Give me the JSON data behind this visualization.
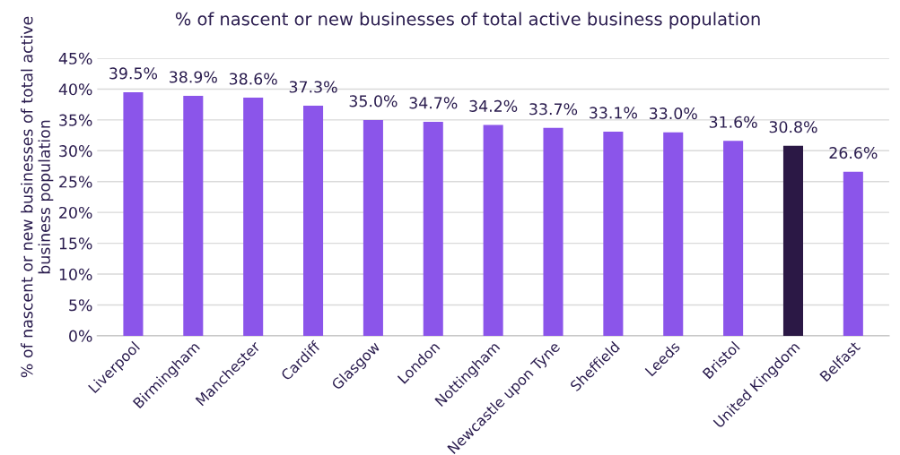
{
  "chart_data": {
    "type": "bar",
    "title": "% of nascent or new businesses of total active business population",
    "ylabel": "% of nascent or new businesses of total active business population",
    "categories": [
      "Liverpool",
      "Birmingham",
      "Manchester",
      "Cardiff",
      "Glasgow",
      "London",
      "Nottingham",
      "Newcastle upon Tyne",
      "Sheffield",
      "Leeds",
      "Bristol",
      "United Kingdom",
      "Belfast"
    ],
    "values": [
      39.5,
      38.9,
      38.6,
      37.3,
      35.0,
      34.7,
      34.2,
      33.7,
      33.1,
      33.0,
      31.6,
      30.8,
      26.6
    ],
    "value_labels": [
      "39.5%",
      "38.9%",
      "38.6%",
      "37.3%",
      "35.0%",
      "34.7%",
      "34.2%",
      "33.7%",
      "33.1%",
      "33.0%",
      "31.6%",
      "30.8%",
      "26.6%"
    ],
    "colors": [
      "#8b55ea",
      "#8b55ea",
      "#8b55ea",
      "#8b55ea",
      "#8b55ea",
      "#8b55ea",
      "#8b55ea",
      "#8b55ea",
      "#8b55ea",
      "#8b55ea",
      "#8b55ea",
      "#2b1845",
      "#8b55ea"
    ],
    "ylim": [
      0,
      45
    ],
    "yticks": [
      {
        "value": 0,
        "label": "0%"
      },
      {
        "value": 5,
        "label": "5%"
      },
      {
        "value": 10,
        "label": "10%"
      },
      {
        "value": 15,
        "label": "15%"
      },
      {
        "value": 20,
        "label": "20%"
      },
      {
        "value": 25,
        "label": "25%"
      },
      {
        "value": 30,
        "label": "30%"
      },
      {
        "value": 35,
        "label": "35%"
      },
      {
        "value": 40,
        "label": "40%"
      },
      {
        "value": 45,
        "label": "45%"
      }
    ],
    "grid": "y",
    "legend": false
  }
}
